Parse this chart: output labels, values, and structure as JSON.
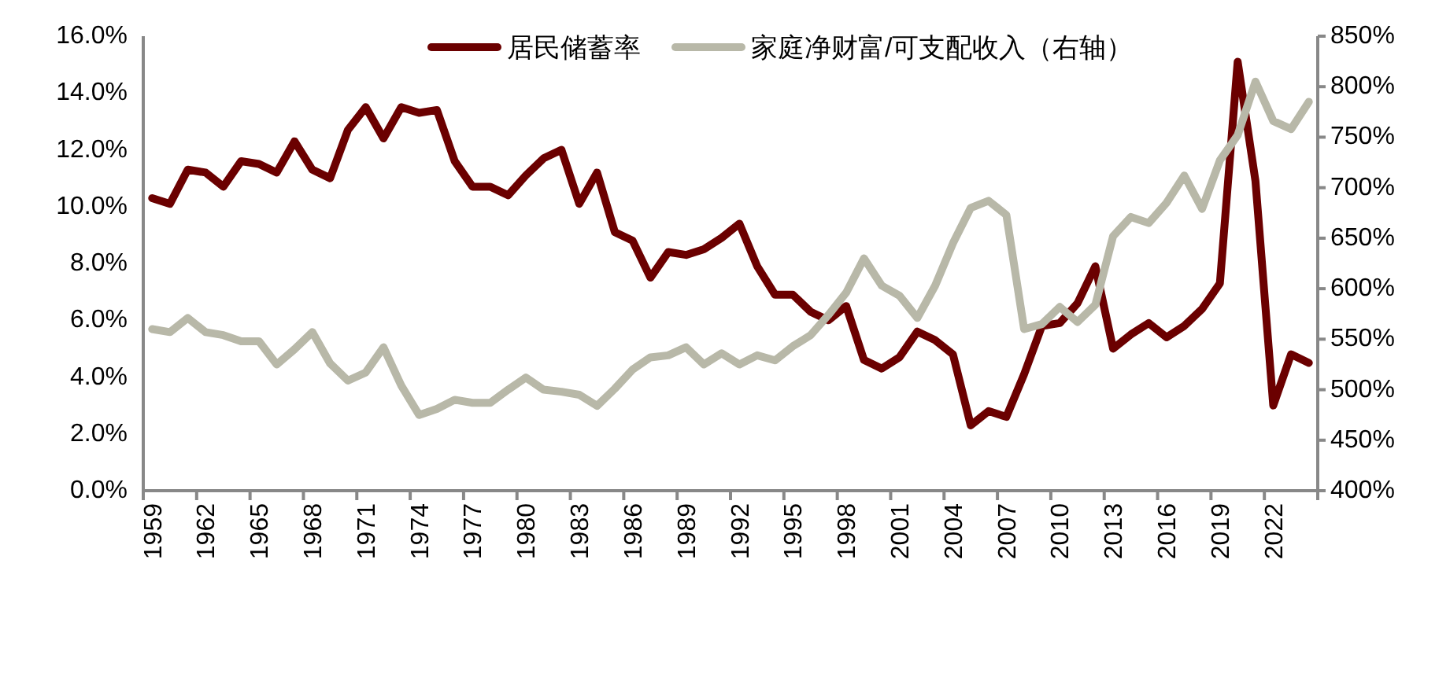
{
  "chart_data": {
    "type": "line",
    "categories": [
      "1959",
      null,
      null,
      "1962",
      null,
      null,
      "1965",
      null,
      null,
      "1968",
      null,
      null,
      "1971",
      null,
      null,
      "1974",
      null,
      null,
      "1977",
      null,
      null,
      "1980",
      null,
      null,
      "1983",
      null,
      null,
      "1986",
      null,
      null,
      "1989",
      null,
      null,
      "1992",
      null,
      null,
      "1995",
      null,
      null,
      "1998",
      null,
      null,
      "2001",
      null,
      null,
      "2004",
      null,
      null,
      "2007",
      null,
      null,
      "2010",
      null,
      null,
      "2013",
      null,
      null,
      "2016",
      null,
      null,
      "2019",
      null,
      null,
      "2022",
      null,
      null
    ],
    "series": [
      {
        "name": "居民储蓄率",
        "color": "#6b0000",
        "values": [
          10.3,
          10.1,
          11.3,
          11.2,
          10.7,
          11.6,
          11.5,
          11.2,
          12.3,
          11.3,
          11.0,
          12.7,
          13.5,
          12.4,
          13.5,
          13.3,
          13.4,
          11.6,
          10.7,
          10.7,
          10.4,
          11.1,
          11.7,
          12.0,
          10.1,
          11.2,
          9.1,
          8.8,
          7.5,
          8.4,
          8.3,
          8.5,
          8.9,
          9.4,
          7.9,
          6.9,
          6.9,
          6.3,
          6.0,
          6.5,
          4.6,
          4.3,
          4.7,
          5.6,
          5.3,
          4.8,
          2.3,
          2.8,
          2.6,
          4.1,
          5.8,
          5.9,
          6.6,
          7.9,
          5.0,
          5.5,
          5.9,
          5.4,
          5.8,
          6.4,
          7.3,
          15.1,
          10.9,
          3.0,
          4.8,
          4.5
        ]
      },
      {
        "name": "家庭净财富/可支配收入（右轴）",
        "color": "#b8b8a8",
        "axis": "y2",
        "values": [
          560,
          557,
          571,
          557,
          554,
          548,
          548,
          525,
          540,
          557,
          526,
          509,
          517,
          542,
          504,
          475,
          481,
          490,
          487,
          487,
          500,
          512,
          500,
          498,
          495,
          484,
          501,
          520,
          532,
          534,
          542,
          525,
          536,
          525,
          534,
          529,
          543,
          554,
          574,
          596,
          630,
          603,
          593,
          571,
          603,
          645,
          680,
          687,
          673,
          560,
          565,
          582,
          567,
          584,
          652,
          671,
          665,
          685,
          712,
          679,
          727,
          752,
          805,
          766,
          758,
          785
        ]
      }
    ],
    "ylim": [
      0,
      16
    ],
    "yticks": [
      {
        "value": 0,
        "label": "0.0%"
      },
      {
        "value": 2,
        "label": "2.0%"
      },
      {
        "value": 4,
        "label": "4.0%"
      },
      {
        "value": 6,
        "label": "6.0%"
      },
      {
        "value": 8,
        "label": "8.0%"
      },
      {
        "value": 10,
        "label": "10.0%"
      },
      {
        "value": 12,
        "label": "12.0%"
      },
      {
        "value": 14,
        "label": "14.0%"
      },
      {
        "value": 16,
        "label": "16.0%"
      }
    ],
    "y2lim": [
      400,
      850
    ],
    "y2ticks": [
      {
        "value": 400,
        "label": "400%"
      },
      {
        "value": 450,
        "label": "450%"
      },
      {
        "value": 500,
        "label": "500%"
      },
      {
        "value": 550,
        "label": "550%"
      },
      {
        "value": 600,
        "label": "600%"
      },
      {
        "value": 650,
        "label": "650%"
      },
      {
        "value": 700,
        "label": "700%"
      },
      {
        "value": 750,
        "label": "750%"
      },
      {
        "value": 800,
        "label": "800%"
      },
      {
        "value": 850,
        "label": "850%"
      }
    ],
    "legend": "top",
    "grid": false
  }
}
